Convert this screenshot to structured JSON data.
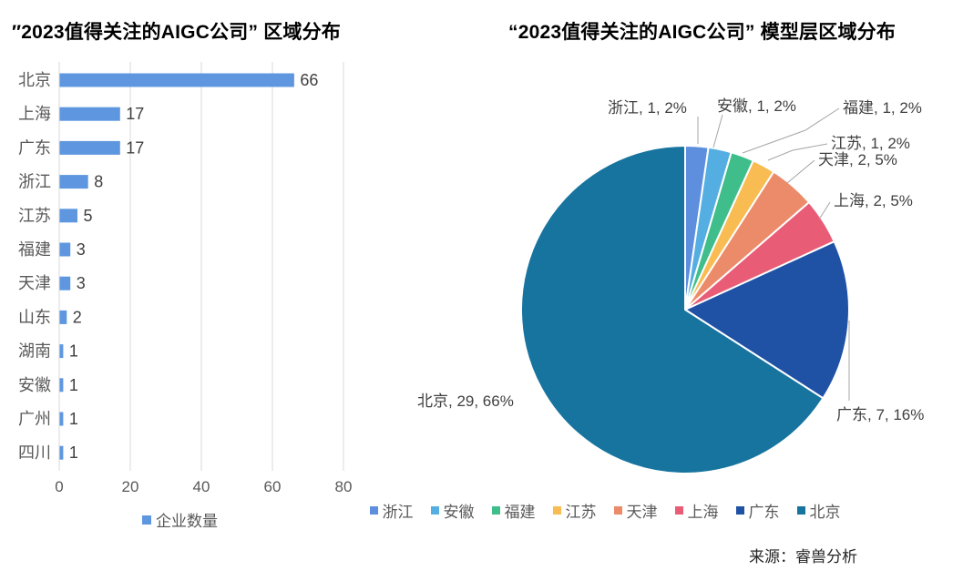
{
  "source": {
    "label": "来源：睿兽分析"
  },
  "palette": {
    "grid": "#D9D9D9",
    "axis_text": "#595959",
    "value_text": "#404040",
    "leader_line": "#A6A6A6",
    "legend_text": "#595959"
  },
  "chart_data": [
    {
      "type": "bar",
      "orientation": "horizontal",
      "title": "″2023值得关注的AIGC公司” 区域分布",
      "series_name": "企业数量",
      "categories": [
        "北京",
        "上海",
        "广东",
        "浙江",
        "江苏",
        "福建",
        "天津",
        "山东",
        "湖南",
        "安徽",
        "广州",
        "四川"
      ],
      "values": [
        66,
        17,
        17,
        8,
        5,
        3,
        3,
        2,
        1,
        1,
        1,
        1
      ],
      "xlim": [
        0,
        80
      ],
      "x_ticks": [
        0,
        20,
        40,
        60,
        80
      ],
      "bar_color": "#5E97E0",
      "grid": true,
      "legend_position": "bottom"
    },
    {
      "type": "pie",
      "title": "“2023值得关注的AIGC公司” 模型层区域分布",
      "labels": [
        "浙江",
        "安徽",
        "福建",
        "江苏",
        "天津",
        "上海",
        "广东",
        "北京"
      ],
      "values": [
        1,
        1,
        1,
        1,
        2,
        2,
        7,
        29
      ],
      "percents": [
        "2%",
        "2%",
        "2%",
        "2%",
        "5%",
        "5%",
        "16%",
        "66%"
      ],
      "callouts": [
        "浙江, 1, 2%",
        "安徽, 1, 2%",
        "福建, 1, 2%",
        "江苏, 1, 2%",
        "天津, 2, 5%",
        "上海, 2, 5%",
        "广东, 7, 16%",
        "北京, 29, 66%"
      ],
      "colors": [
        "#5E8FDE",
        "#55AEE2",
        "#3FBE8B",
        "#F8BC53",
        "#EC8B69",
        "#E85D75",
        "#1F51A5",
        "#17749F"
      ],
      "start_angle": -90,
      "direction": "clockwise",
      "legend_position": "bottom",
      "grid": false
    }
  ]
}
